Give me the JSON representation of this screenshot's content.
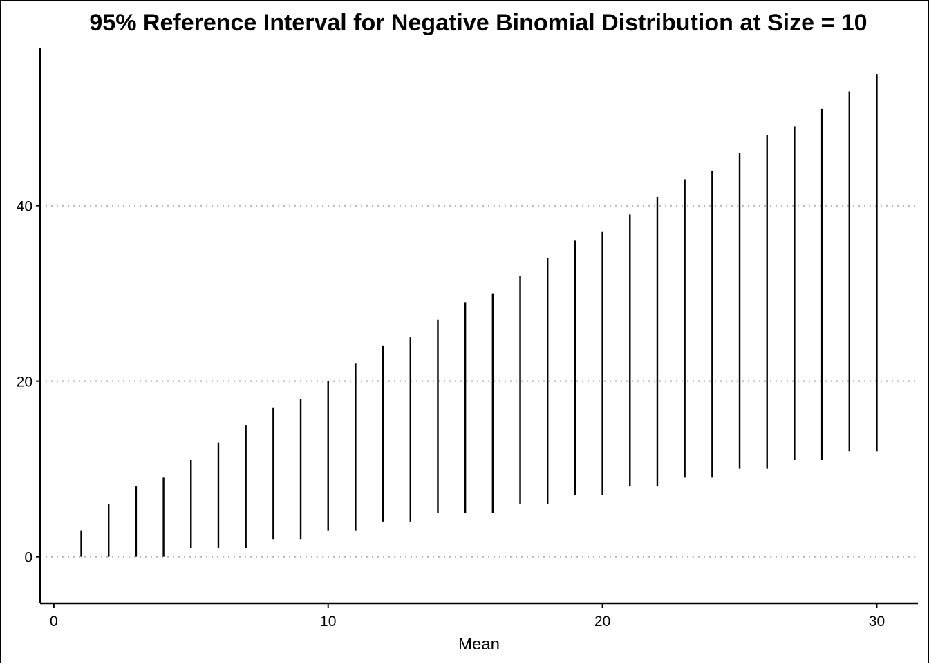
{
  "chart_data": {
    "type": "range",
    "title": "95% Reference Interval for Negative Binomial Distribution at Size = 10",
    "xlabel": "Mean",
    "ylabel": "",
    "xlim": [
      -0.5,
      31.5
    ],
    "ylim": [
      -5.3,
      58
    ],
    "xticks": [
      0,
      10,
      20,
      30
    ],
    "yticks": [
      0,
      20,
      40
    ],
    "grid": "horizontal dotted at y ticks",
    "x": [
      1,
      2,
      3,
      4,
      5,
      6,
      7,
      8,
      9,
      10,
      11,
      12,
      13,
      14,
      15,
      16,
      17,
      18,
      19,
      20,
      21,
      22,
      23,
      24,
      25,
      26,
      27,
      28,
      29,
      30
    ],
    "lower": [
      0,
      0,
      0,
      0,
      1,
      1,
      1,
      2,
      2,
      3,
      3,
      4,
      4,
      5,
      5,
      5,
      6,
      6,
      7,
      7,
      8,
      8,
      9,
      9,
      10,
      10,
      11,
      11,
      12,
      12
    ],
    "upper": [
      3,
      6,
      8,
      9,
      11,
      13,
      15,
      17,
      18,
      20,
      22,
      24,
      25,
      27,
      29,
      30,
      32,
      34,
      36,
      37,
      39,
      41,
      43,
      44,
      46,
      48,
      49,
      51,
      53,
      55
    ],
    "colors": {
      "line": "#000000",
      "grid": "#b3b3b3"
    }
  }
}
